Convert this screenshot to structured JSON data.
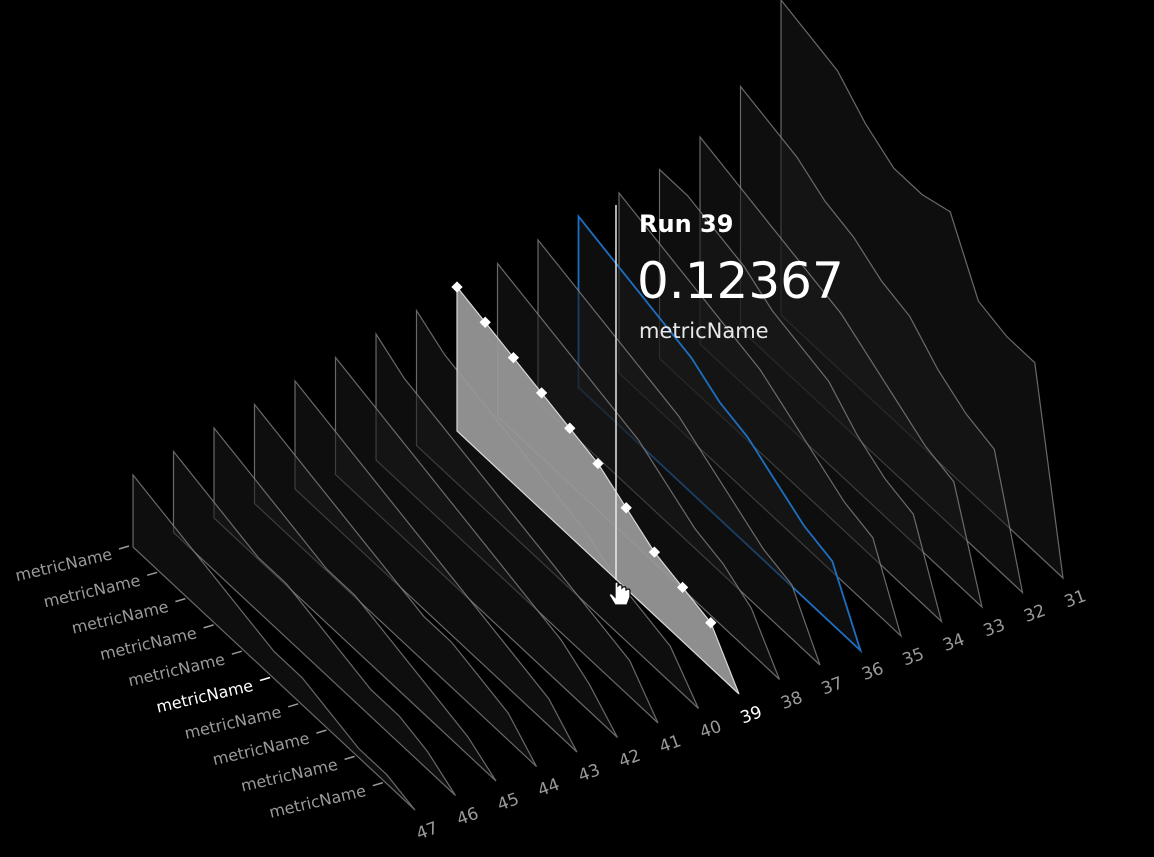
{
  "tooltip": {
    "run_label": "Run 39",
    "value": "0.12367",
    "metric": "metricName"
  },
  "colors": {
    "background": "#000000",
    "highlight_fill": "#9a9a9a",
    "selected_series": "#1e6fc0",
    "ridge_line": "#8a8a8a",
    "label": "#9a9a9a",
    "label_active": "#ffffff"
  },
  "chart_data": {
    "type": "area",
    "chart_style": "3d-ridgeline",
    "x_axis_ticks": [
      "47",
      "46",
      "45",
      "44",
      "43",
      "42",
      "41",
      "40",
      "39",
      "38",
      "37",
      "36",
      "35",
      "34",
      "33",
      "32",
      "31"
    ],
    "y_axis_labels": [
      "metricName",
      "metricName",
      "metricName",
      "metricName",
      "metricName",
      "metricName",
      "metricName",
      "metricName",
      "metricName",
      "metricName"
    ],
    "active_y_label_index": 5,
    "highlighted_run": "39",
    "selected_run": "36",
    "series": [
      {
        "run": "47",
        "values": [
          0.0,
          0.01,
          0.01,
          0.02,
          0.03,
          0.03,
          0.04,
          0.05,
          0.06,
          0.07,
          0.08
        ]
      },
      {
        "run": "46",
        "values": [
          0.0,
          0.02,
          0.03,
          0.03,
          0.04,
          0.05,
          0.06,
          0.06,
          0.07,
          0.08,
          0.09
        ]
      },
      {
        "run": "45",
        "values": [
          0.0,
          0.02,
          0.03,
          0.04,
          0.05,
          0.06,
          0.06,
          0.07,
          0.08,
          0.09,
          0.1
        ]
      },
      {
        "run": "44",
        "values": [
          0.0,
          0.03,
          0.04,
          0.05,
          0.05,
          0.06,
          0.07,
          0.08,
          0.09,
          0.1,
          0.11
        ]
      },
      {
        "run": "43",
        "values": [
          0.0,
          0.03,
          0.04,
          0.05,
          0.06,
          0.07,
          0.08,
          0.09,
          0.1,
          0.11,
          0.12
        ]
      },
      {
        "run": "42",
        "values": [
          0.0,
          0.03,
          0.05,
          0.06,
          0.07,
          0.08,
          0.09,
          0.1,
          0.11,
          0.12,
          0.13
        ]
      },
      {
        "run": "41",
        "values": [
          0.0,
          0.04,
          0.05,
          0.06,
          0.07,
          0.08,
          0.09,
          0.1,
          0.11,
          0.12,
          0.14
        ]
      },
      {
        "run": "40",
        "values": [
          0.0,
          0.04,
          0.05,
          0.06,
          0.08,
          0.09,
          0.1,
          0.11,
          0.12,
          0.13,
          0.15
        ]
      },
      {
        "run": "39",
        "values": [
          0.0,
          0.05,
          0.06,
          0.07,
          0.09,
          0.11,
          0.12,
          0.13,
          0.14,
          0.15,
          0.16
        ]
      },
      {
        "run": "38",
        "values": [
          0.0,
          0.05,
          0.07,
          0.08,
          0.1,
          0.12,
          0.13,
          0.14,
          0.15,
          0.16,
          0.17
        ]
      },
      {
        "run": "37",
        "values": [
          0.0,
          0.06,
          0.07,
          0.09,
          0.11,
          0.13,
          0.14,
          0.15,
          0.16,
          0.17,
          0.18
        ]
      },
      {
        "run": "36",
        "values": [
          0.0,
          0.07,
          0.08,
          0.1,
          0.12,
          0.13,
          0.15,
          0.16,
          0.17,
          0.18,
          0.19
        ]
      },
      {
        "run": "35",
        "values": [
          0.0,
          0.08,
          0.09,
          0.11,
          0.13,
          0.15,
          0.16,
          0.17,
          0.18,
          0.19,
          0.2
        ]
      },
      {
        "run": "34",
        "values": [
          0.0,
          0.09,
          0.1,
          0.12,
          0.15,
          0.16,
          0.17,
          0.19,
          0.2,
          0.21,
          0.21
        ]
      },
      {
        "run": "33",
        "values": [
          0.0,
          0.11,
          0.12,
          0.14,
          0.16,
          0.18,
          0.19,
          0.2,
          0.21,
          0.22,
          0.23
        ]
      },
      {
        "run": "32",
        "values": [
          0.0,
          0.13,
          0.14,
          0.16,
          0.19,
          0.2,
          0.22,
          0.23,
          0.25,
          0.26,
          0.27
        ]
      },
      {
        "run": "31",
        "values": [
          0.0,
          0.21,
          0.21,
          0.22,
          0.29,
          0.28,
          0.28,
          0.3,
          0.33,
          0.34,
          0.35
        ]
      }
    ]
  }
}
